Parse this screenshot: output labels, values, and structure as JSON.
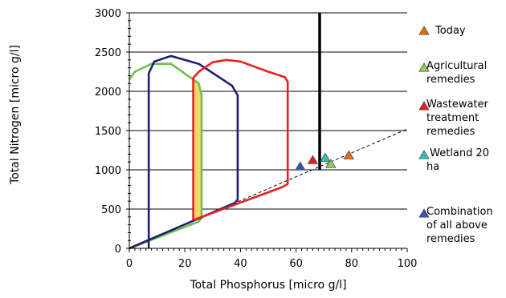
{
  "chart_data": {
    "type": "line",
    "xlabel": "Total Phosphorus [micro g/l]",
    "ylabel": "Total Nitrogen [micro g/l]",
    "xlim": [
      0,
      100
    ],
    "ylim": [
      0,
      3000
    ],
    "x_ticks": [
      "0",
      "20",
      "40",
      "60",
      "80",
      "100"
    ],
    "y_ticks": [
      "0",
      "500",
      "1000",
      "1500",
      "2000",
      "2500",
      "3000"
    ],
    "grid": "horizontal",
    "colors": {
      "today": "#e46c0a",
      "agricultural": "#92d050",
      "wastewater": "#e81c1c",
      "wetland": "#2ec4b6",
      "combination": "#2e59b0",
      "green_curve": "#6cc24a",
      "navy_curve": "#1f1f6e",
      "red_curve": "#e82020",
      "fill": "#f9d56e"
    },
    "curves": [
      {
        "name_key": "green",
        "points": [
          [
            0,
            0
          ],
          [
            25,
            340
          ],
          [
            26,
            390
          ],
          [
            26,
            1950
          ],
          [
            25,
            2100
          ],
          [
            15,
            2350
          ],
          [
            8,
            2350
          ],
          [
            2,
            2250
          ],
          [
            0,
            2150
          ]
        ]
      },
      {
        "name_key": "navy",
        "points": [
          [
            0,
            0
          ],
          [
            38,
            580
          ],
          [
            39,
            620
          ],
          [
            39,
            1950
          ],
          [
            37,
            2070
          ],
          [
            25,
            2350
          ],
          [
            15,
            2450
          ],
          [
            9,
            2380
          ],
          [
            7,
            2230
          ],
          [
            7,
            400
          ],
          [
            7,
            0
          ]
        ]
      },
      {
        "name_key": "red",
        "points": [
          [
            23,
            360
          ],
          [
            23,
            2170
          ],
          [
            25,
            2250
          ],
          [
            30,
            2370
          ],
          [
            35,
            2400
          ],
          [
            40,
            2380
          ],
          [
            50,
            2250
          ],
          [
            56,
            2180
          ],
          [
            57,
            2120
          ],
          [
            57,
            820
          ],
          [
            55,
            780
          ],
          [
            23,
            360
          ]
        ]
      }
    ],
    "shaded_region": [
      [
        23,
        360
      ],
      [
        26,
        390
      ],
      [
        26,
        1950
      ],
      [
        25,
        2100
      ],
      [
        23,
        2150
      ]
    ],
    "vertical_line_x": 68.5,
    "dashed_line": [
      [
        0,
        0
      ],
      [
        100,
        1520
      ]
    ],
    "points": [
      {
        "legend": 0,
        "x": 79,
        "y": 1190
      },
      {
        "legend": 1,
        "x": 72.5,
        "y": 1080
      },
      {
        "legend": 2,
        "x": 66,
        "y": 1130
      },
      {
        "legend": 3,
        "x": 70.5,
        "y": 1160
      },
      {
        "legend": 4,
        "x": 61.5,
        "y": 1050
      }
    ],
    "legend": [
      {
        "lines": [
          "Today"
        ],
        "color": "#e46c0a"
      },
      {
        "lines": [
          "Agricultural",
          "remedies"
        ],
        "color": "#92d050"
      },
      {
        "lines": [
          "Wastewater",
          "treatment",
          "remedies"
        ],
        "color": "#e81c1c"
      },
      {
        "lines": [
          " Wetland 20",
          "ha"
        ],
        "color": "#2ec4b6"
      },
      {
        "lines": [
          "Combination",
          "of all above",
          "remedies"
        ],
        "color": "#2e59b0"
      }
    ]
  }
}
